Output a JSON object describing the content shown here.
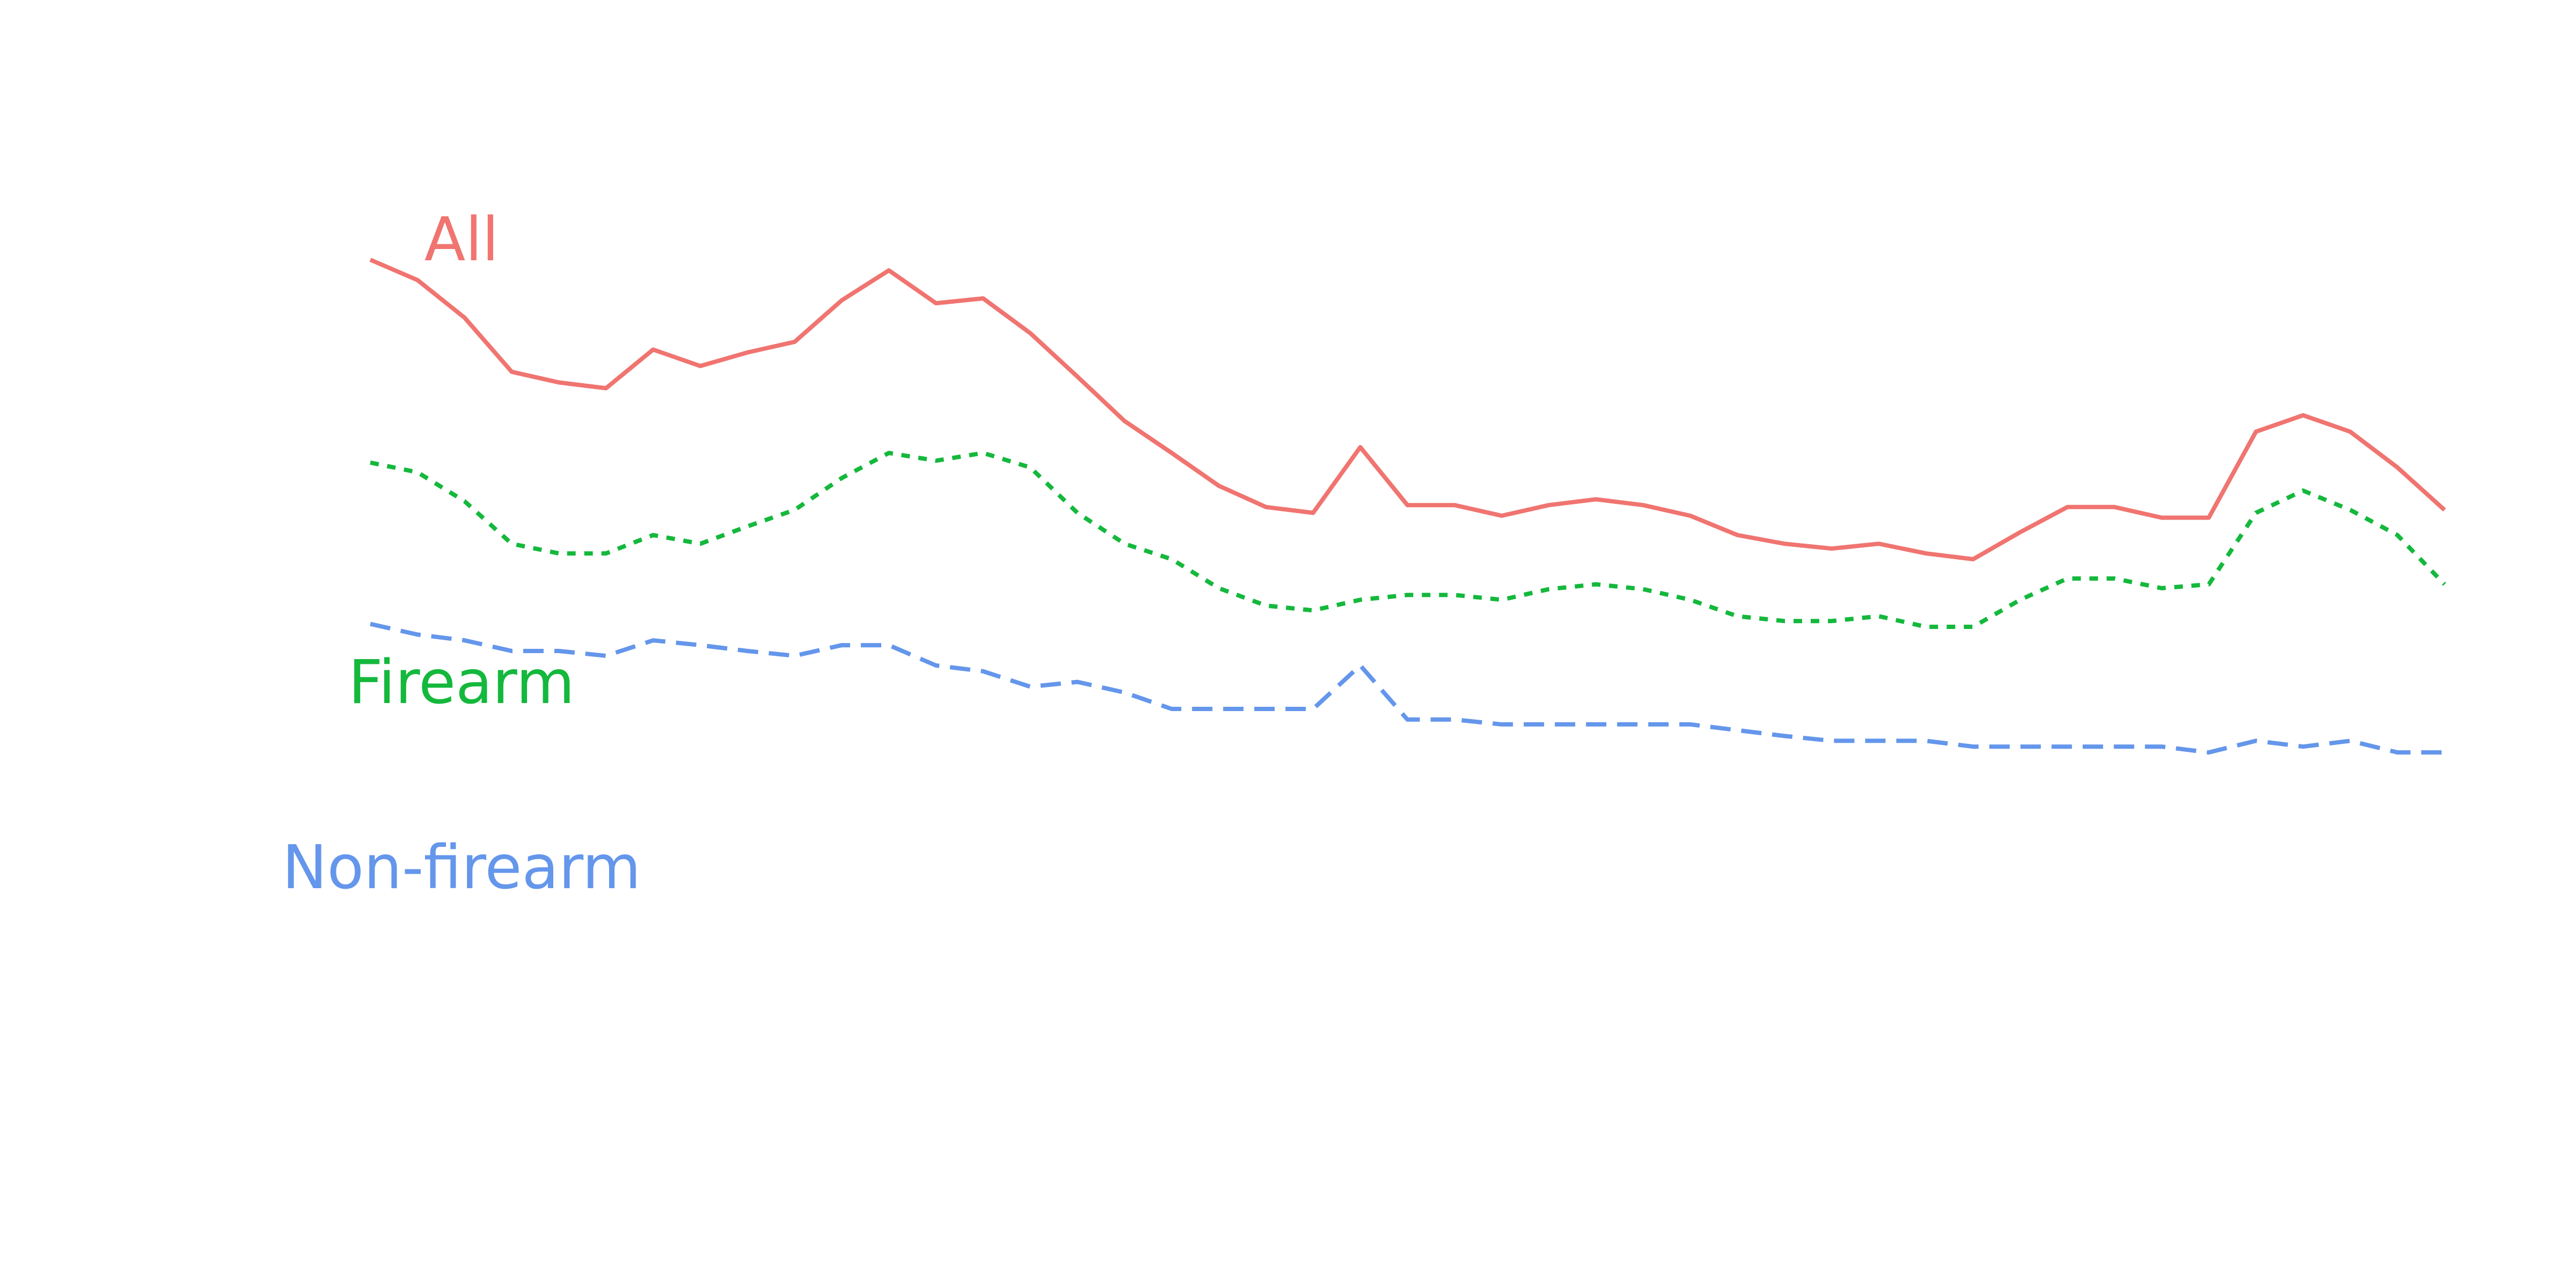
{
  "chart_data": {
    "type": "line",
    "x": [
      1,
      2,
      3,
      4,
      5,
      6,
      7,
      8,
      9,
      10,
      11,
      12,
      13,
      14,
      15,
      16,
      17,
      18,
      19,
      20,
      21,
      22,
      23,
      24,
      25,
      26,
      27,
      28,
      29,
      30,
      31,
      32,
      33,
      34,
      35,
      36,
      37,
      38,
      39,
      40,
      41,
      42,
      43,
      44,
      45
    ],
    "ylim": [
      0,
      100
    ],
    "grid": false,
    "legend": "none",
    "series": [
      {
        "name": "All",
        "color": "#F07470",
        "dash": "solid",
        "values": [
          82.0,
          79.9,
          76.0,
          70.4,
          69.3,
          68.7,
          72.7,
          71.0,
          72.4,
          73.5,
          77.8,
          80.9,
          77.5,
          78.0,
          74.4,
          69.9,
          65.3,
          62.0,
          58.6,
          56.4,
          55.8,
          62.6,
          56.6,
          56.6,
          55.5,
          56.6,
          57.2,
          56.6,
          55.5,
          53.5,
          52.6,
          52.1,
          52.6,
          51.6,
          51.0,
          53.8,
          56.4,
          56.4,
          55.3,
          55.3,
          64.2,
          65.9,
          64.2,
          60.5,
          56.1
        ]
      },
      {
        "name": "Firearm",
        "color": "#14B83C",
        "dash": "dotted",
        "values": [
          61.0,
          60.0,
          57.0,
          52.6,
          51.6,
          51.6,
          53.5,
          52.6,
          54.4,
          56.1,
          59.4,
          62.0,
          61.2,
          62.0,
          60.5,
          55.8,
          52.6,
          51.0,
          48.0,
          46.2,
          45.7,
          46.8,
          47.3,
          47.3,
          46.8,
          47.9,
          48.4,
          47.9,
          46.8,
          45.1,
          44.6,
          44.6,
          45.1,
          44.0,
          44.0,
          46.8,
          49.0,
          49.0,
          48.0,
          48.4,
          55.8,
          58.1,
          56.1,
          53.5,
          48.4
        ]
      },
      {
        "name": "Non-firearm",
        "color": "#6496EB",
        "dash": "dashed",
        "values": [
          44.3,
          43.2,
          42.6,
          41.5,
          41.5,
          41.0,
          42.6,
          42.1,
          41.5,
          41.0,
          42.1,
          42.1,
          40.0,
          39.4,
          37.8,
          38.3,
          37.2,
          35.5,
          35.5,
          35.5,
          35.5,
          40.0,
          34.4,
          34.4,
          33.9,
          33.9,
          33.9,
          33.9,
          33.9,
          33.3,
          32.7,
          32.2,
          32.2,
          32.2,
          31.6,
          31.6,
          31.6,
          31.6,
          31.6,
          31.0,
          32.2,
          31.6,
          32.2,
          31.0,
          31.0
        ]
      }
    ]
  }
}
